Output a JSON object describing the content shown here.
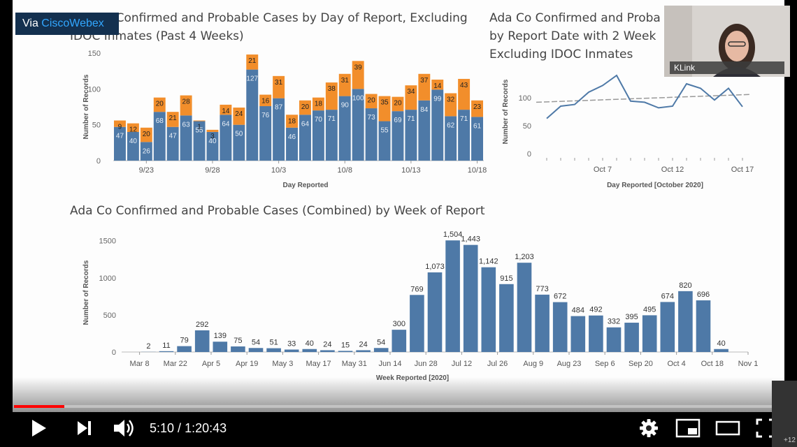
{
  "player": {
    "time_current": "5:10",
    "time_total": "1:20:43",
    "progress_fraction": 0.065,
    "side_badge": "+12",
    "colors": {
      "played": "#ff0000",
      "control_icon": "#ffffff"
    },
    "icons": [
      "play-icon",
      "next-icon",
      "volume-icon",
      "settings-gear-icon",
      "miniplayer-icon",
      "theater-mode-icon",
      "fullscreen-icon"
    ]
  },
  "webex": {
    "prefix": "Via ",
    "brand": "CiscoWebex"
  },
  "camera": {
    "name": "KLink"
  },
  "charts": {
    "daily": {
      "title_line1": "Ada Co Confirmed and Probable Cases by Day of Report, Excluding",
      "title_line2": "IDOC Inmates (Past 4 Weeks)",
      "xlabel": "Day Reported",
      "ylabel": "Number of Records"
    },
    "trend": {
      "title_line1": "Ada Co Confirmed and Proba",
      "title_line2": "by Report Date with 2 Week",
      "title_line3": "Excluding IDOC Inmates",
      "xlabel": "Day Reported [October 2020]",
      "ylabel": "Number of Records"
    },
    "weekly": {
      "title": "Ada Co Confirmed and Probable Cases (Combined) by Week of Report",
      "xlabel": "Week Reported [2020]",
      "ylabel": "Number of Records"
    }
  },
  "chart_data": [
    {
      "type": "bar",
      "stacked": true,
      "colors": {
        "confirmed": "#4e79a7",
        "probable": "#f28e2b"
      },
      "ylim": [
        0,
        150
      ],
      "yticks": [
        0,
        50,
        100,
        150
      ],
      "xtick_labels": [
        {
          "index": 2,
          "label": "9/23"
        },
        {
          "index": 7,
          "label": "9/28"
        },
        {
          "index": 12,
          "label": "10/3"
        },
        {
          "index": 17,
          "label": "10/8"
        },
        {
          "index": 22,
          "label": "10/13"
        },
        {
          "index": 27,
          "label": "10/18"
        }
      ],
      "confirmed": [
        47,
        40,
        26,
        68,
        47,
        63,
        55,
        40,
        64,
        50,
        127,
        76,
        87,
        46,
        64,
        70,
        71,
        90,
        100,
        73,
        55,
        69,
        71,
        84,
        99,
        62,
        71,
        61
      ],
      "probable": [
        9,
        12,
        20,
        20,
        21,
        28,
        1,
        3,
        14,
        24,
        21,
        16,
        31,
        18,
        20,
        18,
        38,
        31,
        39,
        20,
        35,
        20,
        34,
        37,
        14,
        32,
        43,
        23
      ],
      "confirmed_labels": [
        "47",
        "40",
        "26",
        "68",
        "47",
        "63",
        "55",
        "40",
        "64",
        "50",
        "127",
        "76",
        "87",
        "46",
        "64",
        "70",
        "71",
        "90",
        "100",
        "73",
        "55",
        "69",
        "71",
        "84",
        "99",
        "62",
        "71",
        "61"
      ],
      "probable_labels": [
        "9",
        "12",
        "20",
        "20",
        "21",
        "28",
        "1",
        "3",
        "14",
        "24",
        "21",
        "16",
        "31",
        "18",
        "20",
        "18",
        "38",
        "31",
        "39",
        "20",
        "35",
        "20",
        "34",
        "37",
        "14",
        "32",
        "43",
        "23"
      ]
    },
    {
      "type": "line",
      "colors": {
        "line": "#4e79a7",
        "trend": "#999999"
      },
      "ylim": [
        0,
        150
      ],
      "yticks": [
        0,
        50,
        100
      ],
      "xtick_labels": [
        {
          "index": 4,
          "label": "Oct 7"
        },
        {
          "index": 9,
          "label": "Oct 12"
        },
        {
          "index": 14,
          "label": "Oct 17"
        }
      ],
      "values": [
        63,
        85,
        88,
        110,
        122,
        140,
        94,
        92,
        82,
        85,
        125,
        117,
        96,
        117,
        84
      ],
      "trend_values": [
        92,
        106
      ]
    },
    {
      "type": "bar",
      "colors": {
        "bar": "#4e79a7"
      },
      "ylim": [
        0,
        1600
      ],
      "yticks": [
        0,
        500,
        1000,
        1500
      ],
      "xtick_labels": [
        {
          "index": 1,
          "label": "Mar 8"
        },
        {
          "index": 3,
          "label": "Mar 22"
        },
        {
          "index": 5,
          "label": "Apr 5"
        },
        {
          "index": 7,
          "label": "Apr 19"
        },
        {
          "index": 9,
          "label": "May 3"
        },
        {
          "index": 11,
          "label": "May 17"
        },
        {
          "index": 13,
          "label": "May 31"
        },
        {
          "index": 15,
          "label": "Jun 14"
        },
        {
          "index": 17,
          "label": "Jun 28"
        },
        {
          "index": 19,
          "label": "Jul 12"
        },
        {
          "index": 21,
          "label": "Jul 26"
        },
        {
          "index": 23,
          "label": "Aug 9"
        },
        {
          "index": 25,
          "label": "Aug 23"
        },
        {
          "index": 27,
          "label": "Sep 6"
        },
        {
          "index": 29,
          "label": "Sep 20"
        },
        {
          "index": 31,
          "label": "Oct 4"
        },
        {
          "index": 33,
          "label": "Oct 18"
        },
        {
          "index": 35,
          "label": "Nov 1"
        }
      ],
      "values": [
        null,
        2,
        11,
        79,
        292,
        139,
        75,
        54,
        51,
        33,
        40,
        24,
        15,
        24,
        54,
        300,
        769,
        1073,
        1504,
        1443,
        1142,
        915,
        1203,
        773,
        672,
        484,
        492,
        332,
        395,
        495,
        674,
        820,
        696,
        40,
        null
      ],
      "labels": [
        "",
        "2",
        "11",
        "79",
        "292",
        "139",
        "75",
        "54",
        "51",
        "33",
        "40",
        "24",
        "15",
        "24",
        "54",
        "300",
        "769",
        "1,073",
        "1,504",
        "1,443",
        "1,142",
        "915",
        "1,203",
        "773",
        "672",
        "484",
        "492",
        "332",
        "395",
        "495",
        "674",
        "820",
        "696",
        "40",
        ""
      ]
    }
  ]
}
